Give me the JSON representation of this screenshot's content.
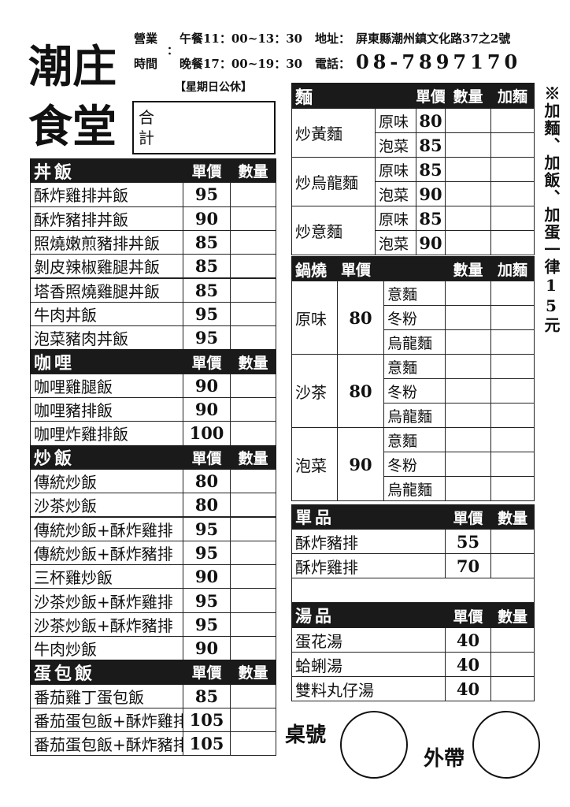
{
  "header": {
    "name": [
      "潮庄",
      "食堂"
    ],
    "hours_label": [
      "營業",
      "時間"
    ],
    "colon": "：",
    "lunch": "午餐11：00~13：30",
    "dinner": "晚餐17：00~19：30",
    "address_label": "地址：",
    "address": "屏東縣潮州鎮文化路37之2號",
    "phone_label": "電話：",
    "phone": "08-7897170",
    "closed": "【星期日公休】",
    "total": "合計"
  },
  "left": [
    {
      "title": "丼飯",
      "columns": [
        "單價",
        "數量"
      ],
      "items": [
        {
          "name": "酥炸雞排丼飯",
          "price": 95
        },
        {
          "name": "酥炸豬排丼飯",
          "price": 90
        },
        {
          "name": "照燒嫩煎豬排丼飯",
          "price": 85
        },
        {
          "name": "剝皮辣椒雞腿丼飯",
          "price": 85
        },
        {
          "name": "塔香照燒雞腿丼飯",
          "price": 85
        },
        {
          "name": "牛肉丼飯",
          "price": 95
        },
        {
          "name": "泡菜豬肉丼飯",
          "price": 95
        }
      ]
    },
    {
      "title": "咖哩",
      "columns": [
        "單價",
        "數量"
      ],
      "items": [
        {
          "name": "咖哩雞腿飯",
          "price": 90
        },
        {
          "name": "咖哩豬排飯",
          "price": 90
        },
        {
          "name": "咖哩炸雞排飯",
          "price": 100
        }
      ]
    },
    {
      "title": "炒飯",
      "columns": [
        "單價",
        "數量"
      ],
      "items": [
        {
          "name": "傳統炒飯",
          "price": 80
        },
        {
          "name": "沙茶炒飯",
          "price": 80
        },
        {
          "name": "傳統炒飯+酥炸雞排",
          "price": 95
        },
        {
          "name": "傳統炒飯+酥炸豬排",
          "price": 95
        },
        {
          "name": "三杯雞炒飯",
          "price": 90
        },
        {
          "name": "沙茶炒飯+酥炸雞排",
          "price": 95
        },
        {
          "name": "沙茶炒飯+酥炸豬排",
          "price": 95
        },
        {
          "name": "牛肉炒飯",
          "price": 90
        }
      ]
    },
    {
      "title": "蛋包飯",
      "columns": [
        "單價",
        "數量"
      ],
      "items": [
        {
          "name": "番茄雞丁蛋包飯",
          "price": 85
        },
        {
          "name": "番茄蛋包飯+酥炸雞排",
          "price": 105
        },
        {
          "name": "番茄蛋包飯+酥炸豬排",
          "price": 105
        }
      ]
    }
  ],
  "noodles": {
    "title": "麵",
    "columns": [
      "單價",
      "數量",
      "加麵"
    ],
    "groups": [
      {
        "name": "炒黃麵",
        "variants": [
          {
            "name": "原味",
            "price": 80
          },
          {
            "name": "泡菜",
            "price": 85
          }
        ]
      },
      {
        "name": "炒烏龍麵",
        "variants": [
          {
            "name": "原味",
            "price": 85
          },
          {
            "name": "泡菜",
            "price": 90
          }
        ]
      },
      {
        "name": "炒意麵",
        "variants": [
          {
            "name": "原味",
            "price": 85
          },
          {
            "name": "泡菜",
            "price": 90
          }
        ]
      }
    ]
  },
  "pot": {
    "title": "鍋燒",
    "columns": [
      "單價",
      "數量",
      "加麵"
    ],
    "groups": [
      {
        "name": "原味",
        "price": 80,
        "noodles": [
          "意麵",
          "冬粉",
          "烏龍麵"
        ]
      },
      {
        "name": "沙茶",
        "price": 80,
        "noodles": [
          "意麵",
          "冬粉",
          "烏龍麵"
        ]
      },
      {
        "name": "泡菜",
        "price": 90,
        "noodles": [
          "意麵",
          "冬粉",
          "烏龍麵"
        ]
      }
    ]
  },
  "singles": {
    "title": "單品",
    "columns": [
      "單價",
      "數量"
    ],
    "items": [
      {
        "name": "酥炸豬排",
        "price": 55
      },
      {
        "name": "酥炸雞排",
        "price": 70
      }
    ]
  },
  "soups": {
    "title": "湯品",
    "columns": [
      "單價",
      "數量"
    ],
    "items": [
      {
        "name": "蛋花湯",
        "price": 40
      },
      {
        "name": "蛤蜊湯",
        "price": 40
      },
      {
        "name": "雙料丸仔湯",
        "price": 40
      }
    ]
  },
  "note": "※加麵、加飯、加蛋一律15元",
  "table_no": "桌號",
  "takeout": "外帶"
}
